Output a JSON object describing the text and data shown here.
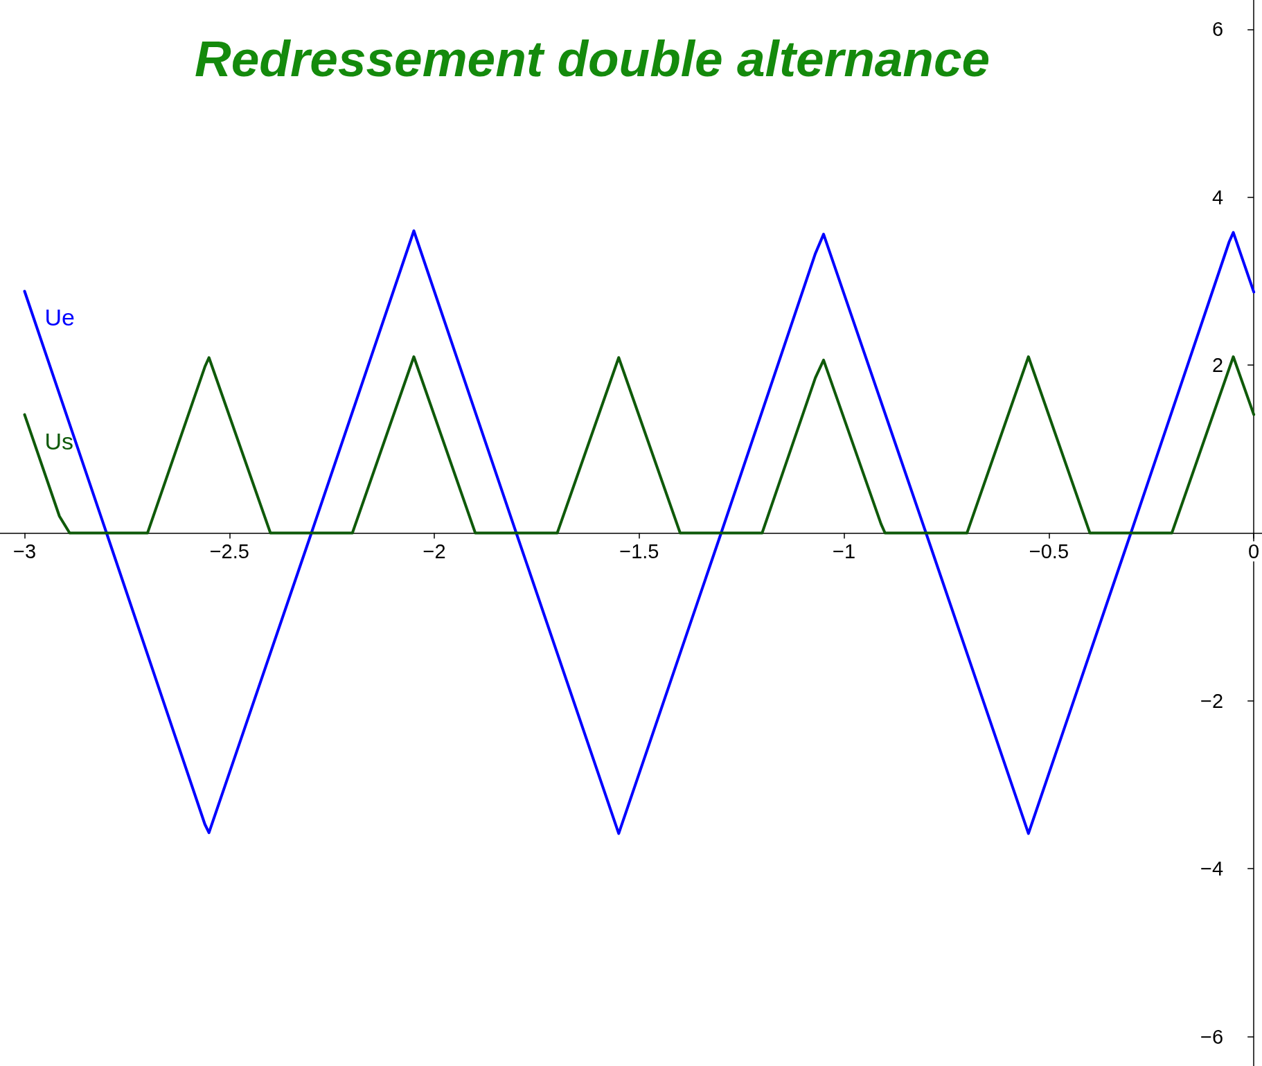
{
  "chart_data": {
    "type": "line",
    "title": "Redressement double alternance",
    "series": [
      {
        "name": "Ue",
        "color": "#0000ff",
        "x": [
          -3,
          -2.8,
          -2.56,
          -2.55,
          -2.3,
          -2.05,
          -1.8,
          -1.55,
          -1.3,
          -1.07,
          -1.05,
          -0.8,
          -0.55,
          -0.3,
          -0.06,
          -0.05,
          0
        ],
        "values": [
          2.88,
          0,
          -3.47,
          -3.57,
          0,
          3.6,
          0,
          -3.58,
          0,
          3.33,
          3.56,
          0,
          -3.58,
          0,
          3.47,
          3.58,
          2.87
        ]
      },
      {
        "name": "Us",
        "color": "#0f5a0a",
        "x": [
          -3,
          -2.915,
          -2.89,
          -2.7,
          -2.56,
          -2.55,
          -2.4,
          -2.2,
          -2.05,
          -1.9,
          -1.7,
          -1.55,
          -1.4,
          -1.2,
          -1.07,
          -1.05,
          -0.91,
          -0.9,
          -0.7,
          -0.55,
          -0.4,
          -0.2,
          -0.05,
          0
        ],
        "values": [
          1.41,
          0.2,
          0,
          0,
          1.98,
          2.09,
          0,
          0,
          2.1,
          0,
          0,
          2.09,
          0,
          0,
          1.85,
          2.06,
          0.11,
          0,
          0,
          2.1,
          0,
          0,
          2.1,
          1.41
        ]
      }
    ],
    "xlim": [
      -3.06,
      0.02
    ],
    "ylim": [
      -6.35,
      6.35
    ],
    "xticks": [
      {
        "value": -3,
        "label": "−3"
      },
      {
        "value": -2.5,
        "label": "−2.5"
      },
      {
        "value": -2,
        "label": "−2"
      },
      {
        "value": -1.5,
        "label": "−1.5"
      },
      {
        "value": -1,
        "label": "−1"
      },
      {
        "value": -0.5,
        "label": "−0.5"
      },
      0
    ],
    "yticks": [
      {
        "value": -6,
        "label": "−6"
      },
      {
        "value": -4,
        "label": "−4"
      },
      {
        "value": -2,
        "label": "−2"
      },
      2,
      4,
      6
    ],
    "grid": false,
    "legend": false
  }
}
